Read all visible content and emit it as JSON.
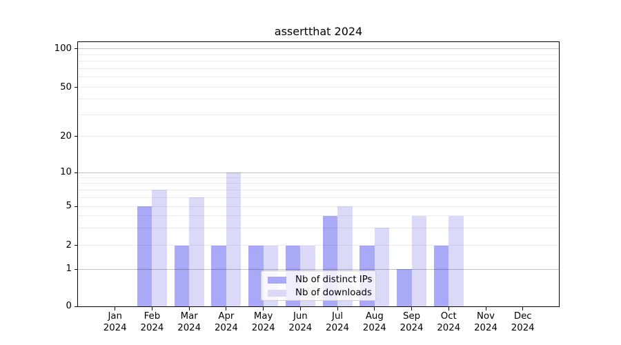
{
  "title": "assertthat 2024",
  "chart_data": {
    "type": "bar",
    "title": "assertthat 2024",
    "categories": [
      "Jan",
      "Feb",
      "Mar",
      "Apr",
      "May",
      "Jun",
      "Jul",
      "Aug",
      "Sep",
      "Oct",
      "Nov",
      "Dec"
    ],
    "year": "2024",
    "series": [
      {
        "name": "Nb of distinct IPs",
        "color": "#a9a9f7",
        "values": [
          0,
          5,
          2,
          2,
          2,
          2,
          4,
          2,
          1,
          2,
          0,
          0
        ]
      },
      {
        "name": "Nb of downloads",
        "color": "#dadaf8",
        "values": [
          0,
          7,
          6,
          10,
          2,
          2,
          5,
          3,
          4,
          4,
          0,
          0
        ]
      }
    ],
    "yscale": "log-like (0 baseline, log above 1)",
    "yticks": [
      0,
      1,
      2,
      5,
      10,
      20,
      50,
      100
    ],
    "minor_grid_values": [
      2,
      3,
      4,
      5,
      6,
      7,
      8,
      9,
      20,
      30,
      40,
      50,
      60,
      70,
      80,
      90
    ],
    "major_grid_values": [
      1,
      10,
      100
    ],
    "ylim": [
      0,
      100
    ],
    "grid": true,
    "legend_position": "lower center inside plot"
  }
}
